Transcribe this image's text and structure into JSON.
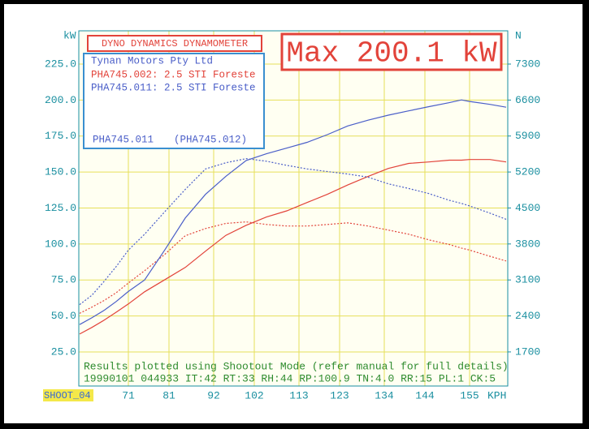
{
  "chart_data": {
    "type": "line",
    "title": "DYNO DYNAMICS DYNAMOMETER",
    "max_label": "Max 200.1 kW",
    "y_label": "kW",
    "y2_label": "N",
    "x_label": "KPH",
    "run_label": "SHOOT_04",
    "legend_heading": "Tynan Motors Pty Ltd",
    "legend_footer": [
      "PHA745.011",
      "(PHA745.012)"
    ],
    "footer_lines": [
      "Results plotted using Shootout Mode (refer manual for full details)",
      "19990101 044933 IT:42 RT:33 RH:44 RP:100.9 TN:4.0 RR:15 PL:1 CK:5"
    ],
    "x": [
      59,
      62,
      65,
      68,
      71,
      75,
      80,
      85,
      90,
      95,
      100,
      105,
      110,
      115,
      120,
      125,
      130,
      135,
      140,
      145,
      150,
      153,
      155,
      160,
      164
    ],
    "series": [
      {
        "name": "PHA745.002: 2.5 STI Foreste",
        "color": "#e2433a",
        "values": [
          37.4,
          42,
          47,
          52.6,
          58.3,
          66.8,
          75.2,
          83.7,
          95,
          106,
          113,
          118.7,
          123,
          128.8,
          134.5,
          141,
          146.9,
          152.5,
          156,
          157,
          158.2,
          158.2,
          158.7,
          158.7,
          157
        ],
        "force_values": [
          2450,
          2570,
          2700,
          2850,
          3040,
          3280,
          3600,
          3960,
          4100,
          4200,
          4230,
          4180,
          4150,
          4150,
          4180,
          4210,
          4150,
          4070,
          3990,
          3880,
          3790,
          3720,
          3680,
          3560,
          3470
        ]
      },
      {
        "name": "PHA745.011: 2.5 STI Foreste",
        "color": "#4a5ec8",
        "values": [
          44,
          48.7,
          53.8,
          60,
          67,
          75,
          96,
          118,
          134.5,
          147,
          158,
          162.7,
          166.6,
          170.6,
          176,
          182,
          186,
          189.5,
          192.5,
          195.4,
          198.2,
          200.1,
          199,
          197,
          195
        ],
        "force_values": [
          2620,
          2800,
          3070,
          3360,
          3680,
          3990,
          4430,
          4860,
          5260,
          5380,
          5460,
          5410,
          5330,
          5260,
          5210,
          5160,
          5100,
          4970,
          4880,
          4780,
          4650,
          4590,
          4540,
          4400,
          4280
        ]
      }
    ],
    "xlim": [
      58.8,
      164.4
    ],
    "xticks": [
      71,
      81,
      92,
      102,
      113,
      123,
      134,
      144,
      155
    ],
    "ylim": [
      1.3,
      248.1
    ],
    "yticks": [
      {
        "value": 25,
        "label": "25.0"
      },
      {
        "value": 50,
        "label": "50.0"
      },
      {
        "value": 75,
        "label": "75.0"
      },
      {
        "value": 100,
        "label": "100.0"
      },
      {
        "value": 125,
        "label": "125.0"
      },
      {
        "value": 150,
        "label": "150.0"
      },
      {
        "value": 175,
        "label": "175.0"
      },
      {
        "value": 200,
        "label": "200.0"
      },
      {
        "value": 225,
        "label": "225.0"
      }
    ],
    "y2lim": [
      1036.4,
      7946.8
    ],
    "y2ticks": [
      1700,
      2400,
      3100,
      3800,
      4500,
      5200,
      5900,
      6600,
      7300
    ],
    "grid": true,
    "grid_color": "#e6df5a"
  }
}
